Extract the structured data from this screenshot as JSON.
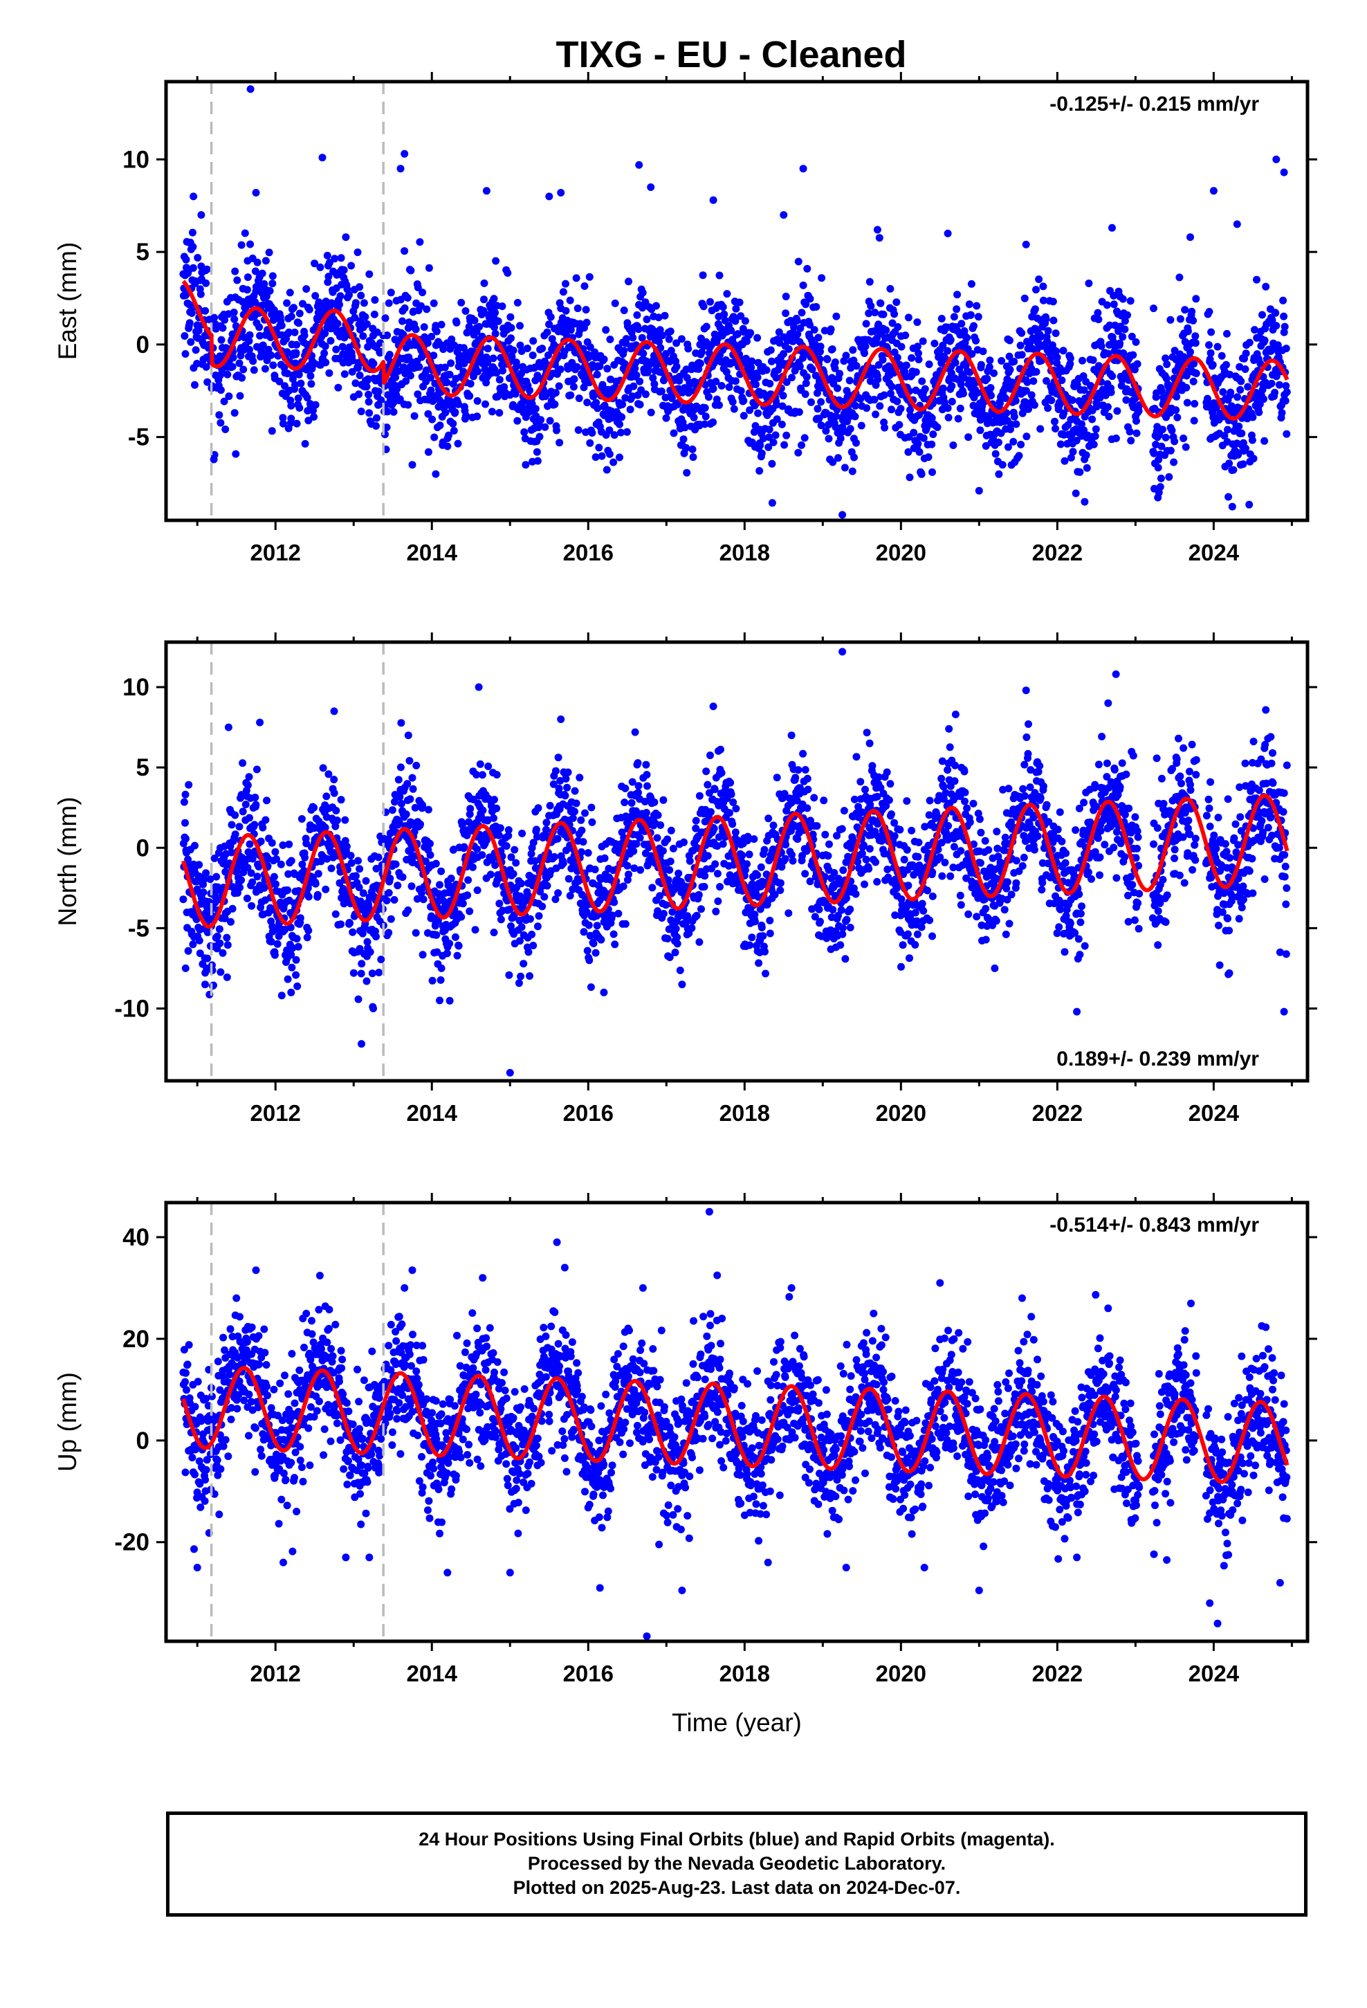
{
  "title": "TIXG  - EU - Cleaned",
  "colors": {
    "points": "#0000ff",
    "fit": "#ff0000",
    "breaks": "#bbbbbb",
    "frame": "#000000"
  },
  "chart_data": [
    {
      "type": "scatter",
      "component": "East",
      "ylabel": "East (mm)",
      "xlabel": "",
      "xlim": [
        2010.6,
        2025.2
      ],
      "ylim": [
        -9.5,
        14.2
      ],
      "yticks": [
        -5,
        0,
        5,
        10
      ],
      "xticks": [
        2012,
        2014,
        2016,
        2018,
        2020,
        2022,
        2024
      ],
      "rate_label": "-0.125+/- 0.215 mm/yr",
      "rate_position": "top-right",
      "breaks": [
        2011.18,
        2013.38
      ],
      "fit": {
        "offset": 1.2,
        "trend": -0.125,
        "annual_amplitude": 1.6,
        "annual_peak": 0.75,
        "steps": [
          {
            "at": 2011.18,
            "delta": -1.5
          },
          {
            "at": 2013.38,
            "delta": -1.2
          }
        ]
      },
      "series": [
        {
          "name": "Final Orbits",
          "points": [
            [
              2010.9,
              5.5
            ],
            [
              2010.95,
              8.0
            ],
            [
              2011.05,
              7.0
            ],
            [
              2011.3,
              1.0
            ],
            [
              2011.45,
              -1.2
            ],
            [
              2011.68,
              13.8
            ],
            [
              2011.75,
              8.2
            ],
            [
              2012.05,
              -2.0
            ],
            [
              2012.2,
              -4.0
            ],
            [
              2012.6,
              10.1
            ],
            [
              2012.9,
              5.8
            ],
            [
              2013.2,
              3.8
            ],
            [
              2013.5,
              -2.8
            ],
            [
              2013.6,
              9.5
            ],
            [
              2013.65,
              10.3
            ],
            [
              2013.75,
              -6.5
            ],
            [
              2014.05,
              -7.0
            ],
            [
              2014.2,
              -5.5
            ],
            [
              2014.7,
              8.3
            ],
            [
              2015.2,
              -6.5
            ],
            [
              2015.5,
              8.0
            ],
            [
              2015.65,
              8.2
            ],
            [
              2016.4,
              -6.1
            ],
            [
              2016.65,
              9.7
            ],
            [
              2016.8,
              8.5
            ],
            [
              2017.6,
              7.8
            ],
            [
              2018.2,
              -4.6
            ],
            [
              2018.5,
              7.0
            ],
            [
              2018.75,
              9.5
            ],
            [
              2019.25,
              -9.2
            ],
            [
              2019.4,
              -6.1
            ],
            [
              2019.7,
              6.2
            ],
            [
              2020.4,
              -6.9
            ],
            [
              2020.6,
              6.0
            ],
            [
              2021.0,
              -7.9
            ],
            [
              2021.3,
              -6.5
            ],
            [
              2021.6,
              5.4
            ],
            [
              2022.35,
              -8.5
            ],
            [
              2022.7,
              6.3
            ],
            [
              2023.3,
              -8.0
            ],
            [
              2023.45,
              -4.5
            ],
            [
              2023.7,
              5.8
            ],
            [
              2024.0,
              8.3
            ],
            [
              2024.3,
              6.5
            ],
            [
              2024.55,
              3.5
            ],
            [
              2024.8,
              10.0
            ],
            [
              2024.9,
              9.3
            ]
          ]
        }
      ]
    },
    {
      "type": "scatter",
      "component": "North",
      "ylabel": "North (mm)",
      "xlabel": "",
      "xlim": [
        2010.6,
        2025.2
      ],
      "ylim": [
        -14.5,
        12.8
      ],
      "yticks": [
        -10,
        -5,
        0,
        5,
        10
      ],
      "xticks": [
        2012,
        2014,
        2016,
        2018,
        2020,
        2022,
        2024
      ],
      "rate_label": "0.189+/- 0.239 mm/yr",
      "rate_position": "bottom-right",
      "breaks": [
        2011.18,
        2013.38
      ],
      "fit": {
        "offset": -1.0,
        "trend": 0.189,
        "annual_amplitude": 2.8,
        "annual_peak": 0.65,
        "steps": []
      },
      "series": [
        {
          "name": "Final Orbits",
          "points": [
            [
              2010.85,
              -7.5
            ],
            [
              2011.1,
              -8.5
            ],
            [
              2011.4,
              7.5
            ],
            [
              2011.8,
              7.8
            ],
            [
              2012.2,
              -9.0
            ],
            [
              2012.75,
              8.5
            ],
            [
              2013.1,
              -12.2
            ],
            [
              2013.25,
              -10.0
            ],
            [
              2013.7,
              7.0
            ],
            [
              2014.1,
              -9.5
            ],
            [
              2014.6,
              10.0
            ],
            [
              2015.0,
              -14.0
            ],
            [
              2015.65,
              8.0
            ],
            [
              2016.2,
              -9.0
            ],
            [
              2016.6,
              7.2
            ],
            [
              2017.2,
              -8.5
            ],
            [
              2017.6,
              8.8
            ],
            [
              2018.2,
              -5.5
            ],
            [
              2018.6,
              7.0
            ],
            [
              2019.25,
              12.2
            ],
            [
              2019.6,
              6.5
            ],
            [
              2020.4,
              -5.5
            ],
            [
              2020.7,
              8.3
            ],
            [
              2021.2,
              -7.5
            ],
            [
              2021.6,
              9.8
            ],
            [
              2022.25,
              -10.2
            ],
            [
              2022.65,
              9.0
            ],
            [
              2022.75,
              10.8
            ],
            [
              2023.55,
              6.8
            ],
            [
              2024.2,
              -7.8
            ],
            [
              2024.65,
              6.2
            ],
            [
              2024.85,
              -6.5
            ],
            [
              2024.9,
              -10.2
            ]
          ]
        }
      ]
    },
    {
      "type": "scatter",
      "component": "Up",
      "ylabel": "Up (mm)",
      "xlabel": "Time (year)",
      "xlim": [
        2010.6,
        2025.2
      ],
      "ylim": [
        -39.5,
        46.8
      ],
      "yticks": [
        -20,
        0,
        20,
        40
      ],
      "xticks": [
        2012,
        2014,
        2016,
        2018,
        2020,
        2022,
        2024
      ],
      "rate_label": "-0.514+/- 0.843 mm/yr",
      "rate_position": "top-right",
      "breaks": [
        2011.18,
        2013.38
      ],
      "fit": {
        "offset": 3.5,
        "trend": -0.514,
        "annual_amplitude": 8.0,
        "annual_peak": 0.6,
        "steps": []
      },
      "series": [
        {
          "name": "Final Orbits",
          "points": [
            [
              2011.0,
              -25.0
            ],
            [
              2011.5,
              28.0
            ],
            [
              2011.75,
              33.5
            ],
            [
              2012.1,
              -24.0
            ],
            [
              2012.35,
              24.0
            ],
            [
              2012.9,
              -23.0
            ],
            [
              2013.2,
              -23.0
            ],
            [
              2013.65,
              30.0
            ],
            [
              2013.75,
              33.5
            ],
            [
              2014.2,
              -26.0
            ],
            [
              2014.65,
              32.0
            ],
            [
              2015.0,
              -26.0
            ],
            [
              2015.6,
              39.0
            ],
            [
              2015.7,
              34.0
            ],
            [
              2016.15,
              -29.0
            ],
            [
              2016.7,
              30.0
            ],
            [
              2016.75,
              -38.5
            ],
            [
              2017.2,
              -29.5
            ],
            [
              2017.55,
              45.0
            ],
            [
              2017.65,
              32.5
            ],
            [
              2018.3,
              -24.0
            ],
            [
              2018.6,
              30.0
            ],
            [
              2019.3,
              -25.0
            ],
            [
              2019.65,
              25.0
            ],
            [
              2020.3,
              -25.0
            ],
            [
              2020.5,
              31.0
            ],
            [
              2021.0,
              -29.5
            ],
            [
              2021.55,
              28.0
            ],
            [
              2022.25,
              -23.0
            ],
            [
              2022.65,
              26.0
            ],
            [
              2023.4,
              -23.5
            ],
            [
              2023.55,
              17.0
            ],
            [
              2023.95,
              -32.0
            ],
            [
              2024.05,
              -36.0
            ],
            [
              2024.7,
              18.0
            ],
            [
              2024.85,
              -28.0
            ]
          ]
        }
      ]
    }
  ],
  "caption": {
    "line1": "24 Hour Positions Using Final Orbits (blue) and Rapid Orbits (magenta).",
    "line2": "Processed by the Nevada Geodetic Laboratory.",
    "line3": "Plotted on 2025-Aug-23. Last data on 2024-Dec-07."
  }
}
